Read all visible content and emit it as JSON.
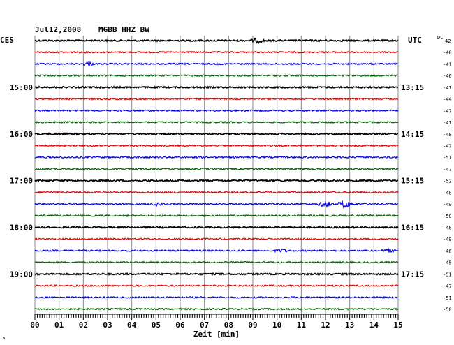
{
  "chart_data": {
    "type": "line",
    "title": "Jul12,2008",
    "station": "MGBB HHZ BW",
    "left_axis_title": "CES",
    "right_axis_title": "UTC",
    "dc_header": "DC",
    "xlabel": "Zeit [min]",
    "xlim": [
      0,
      15
    ],
    "x_ticks": [
      "00",
      "01",
      "02",
      "03",
      "04",
      "05",
      "06",
      "07",
      "08",
      "09",
      "10",
      "11",
      "12",
      "13",
      "14",
      "15"
    ],
    "left_time_labels": [
      {
        "trace": 4,
        "label": "15:00"
      },
      {
        "trace": 8,
        "label": "16:00"
      },
      {
        "trace": 12,
        "label": "17:00"
      },
      {
        "trace": 16,
        "label": "18:00"
      },
      {
        "trace": 20,
        "label": "19:00"
      }
    ],
    "right_time_labels": [
      {
        "trace": 4,
        "label": "13:15"
      },
      {
        "trace": 8,
        "label": "14:15"
      },
      {
        "trace": 12,
        "label": "15:15"
      },
      {
        "trace": 16,
        "label": "16:15"
      },
      {
        "trace": 20,
        "label": "17:15"
      }
    ],
    "dc_offsets": [
      "42",
      "-40",
      "-41",
      "-46",
      "-41",
      "-44",
      "-47",
      "-41",
      "-48",
      "-47",
      "-51",
      "-47",
      "-52",
      "-48",
      "-49",
      "-50",
      "-48",
      "-49",
      "-46",
      "-45",
      "-51",
      "-47",
      "-51",
      "-50"
    ],
    "trace_colors": [
      "#000000",
      "#e00000",
      "#0000e0",
      "#006000"
    ],
    "events": [
      {
        "trace": 0,
        "x_min": 9.2,
        "amplitude": 3
      },
      {
        "trace": 2,
        "x_min": 2.2,
        "amplitude": 2
      },
      {
        "trace": 14,
        "x_min": 5.0,
        "amplitude": 2
      },
      {
        "trace": 14,
        "x_min": 12.0,
        "amplitude": 4
      },
      {
        "trace": 14,
        "x_min": 12.8,
        "amplitude": 6
      },
      {
        "trace": 18,
        "x_min": 10.2,
        "amplitude": 2
      },
      {
        "trace": 18,
        "x_min": 14.6,
        "amplitude": 2
      }
    ]
  }
}
